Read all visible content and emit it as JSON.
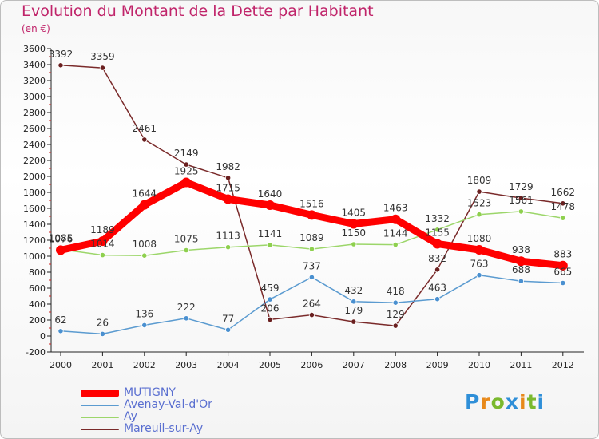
{
  "title": "Evolution du Montant de la Dette par Habitant",
  "unit": "(en €)",
  "brand": {
    "text": "Proxiti",
    "letter_colors": [
      "#2f8fd8",
      "#e8891a",
      "#7ab92e",
      "#2f8fd8",
      "#e8891a",
      "#7ab92e",
      "#2f8fd8"
    ]
  },
  "chart_data": {
    "type": "line",
    "x": [
      "2000",
      "2001",
      "2002",
      "2003",
      "2004",
      "2005",
      "2006",
      "2007",
      "2008",
      "2009",
      "2010",
      "2011",
      "2012"
    ],
    "ylim": [
      -200,
      3600
    ],
    "yticks": [
      -200,
      0,
      200,
      400,
      600,
      800,
      1000,
      1200,
      1400,
      1600,
      1800,
      2000,
      2200,
      2400,
      2600,
      2800,
      3000,
      3200,
      3400,
      3600
    ],
    "grid": false,
    "legend_position": "bottom-left",
    "series": [
      {
        "name": "MUTIGNY",
        "color": "#ff0000",
        "values": [
          1076,
          1189,
          1644,
          1925,
          1715,
          1640,
          1516,
          1405,
          1463,
          1155,
          1080,
          938,
          883
        ]
      },
      {
        "name": "Avenay-Val-d'Or",
        "color": "#5b9bd0",
        "values": [
          62,
          26,
          136,
          222,
          77,
          459,
          737,
          432,
          418,
          463,
          763,
          688,
          665
        ]
      },
      {
        "name": "Ay",
        "color": "#9cd66a",
        "values": [
          1085,
          1014,
          1008,
          1075,
          1113,
          1141,
          1089,
          1150,
          1144,
          1332,
          1523,
          1561,
          1478
        ]
      },
      {
        "name": "Mareuil-sur-Ay",
        "color": "#7a2a2a",
        "values": [
          3392,
          3359,
          2461,
          2149,
          1982,
          206,
          264,
          179,
          129,
          832,
          1809,
          1729,
          1662
        ]
      }
    ]
  }
}
